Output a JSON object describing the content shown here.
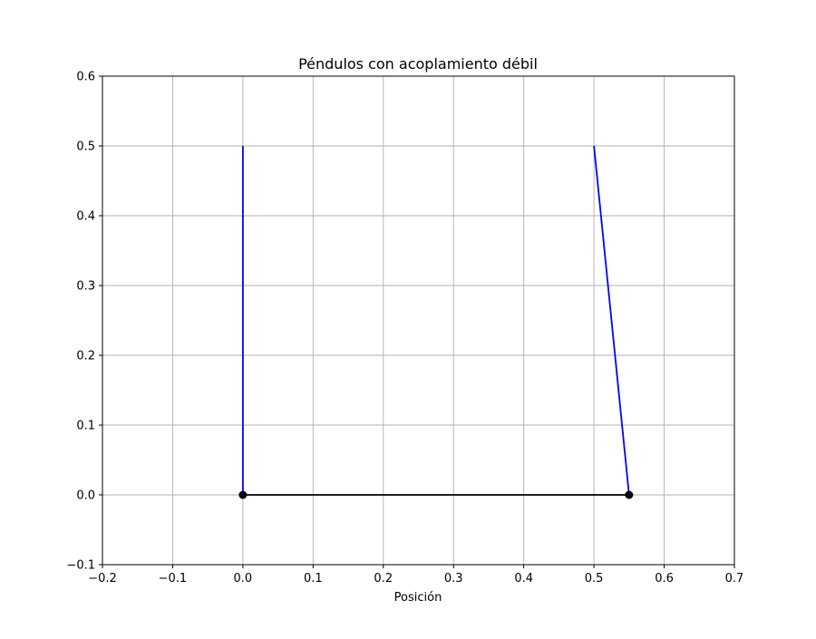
{
  "chart_data": {
    "type": "line",
    "title": "Péndulos con acoplamiento débil",
    "xlabel": "Posición",
    "ylabel": "",
    "xlim": [
      -0.2,
      0.7
    ],
    "ylim": [
      -0.1,
      0.6
    ],
    "xticks": [
      -0.2,
      -0.1,
      0.0,
      0.1,
      0.2,
      0.3,
      0.4,
      0.5,
      0.6,
      0.7
    ],
    "xtick_labels": [
      "−0.2",
      "−0.1",
      "0.0",
      "0.1",
      "0.2",
      "0.3",
      "0.4",
      "0.5",
      "0.6",
      "0.7"
    ],
    "yticks": [
      -0.1,
      0.0,
      0.1,
      0.2,
      0.3,
      0.4,
      0.5,
      0.6
    ],
    "ytick_labels": [
      "−0.1",
      "0.0",
      "0.1",
      "0.2",
      "0.3",
      "0.4",
      "0.5",
      "0.6"
    ],
    "grid": true,
    "series": [
      {
        "x": [
          0.0,
          0.0
        ],
        "y": [
          0.5,
          0.0
        ],
        "color": "#0000ff",
        "role": "string"
      },
      {
        "x": [
          0.5,
          0.55
        ],
        "y": [
          0.5,
          0.0
        ],
        "color": "#0000ff",
        "role": "string"
      },
      {
        "x": [
          0.0,
          0.55
        ],
        "y": [
          0.0,
          0.0
        ],
        "color": "#000000",
        "role": "spring"
      }
    ],
    "points": [
      {
        "x": 0.0,
        "y": 0.0,
        "color": "#000000"
      },
      {
        "x": 0.55,
        "y": 0.0,
        "color": "#000000"
      }
    ]
  }
}
